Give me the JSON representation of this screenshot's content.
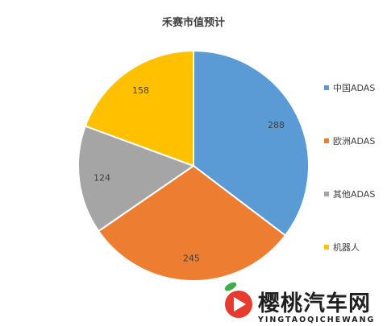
{
  "chart_data": {
    "type": "pie",
    "title": "禾赛市值预计",
    "categories": [
      "中国ADAS",
      "欧洲ADAS",
      "其他ADAS",
      "机器人"
    ],
    "values": [
      288,
      245,
      124,
      158
    ],
    "colors": [
      "#5b9bd5",
      "#ed7d31",
      "#a5a5a5",
      "#ffc000"
    ],
    "legend_position": "right",
    "data_labels": [
      "288",
      "245",
      "124",
      "158"
    ]
  },
  "watermark": {
    "brand": "樱桃汽车网",
    "romanized": "YINGTAOQICHEWANG",
    "logo_colors": [
      "#e63b2e",
      "#f29a1e",
      "#3dae4a"
    ]
  }
}
